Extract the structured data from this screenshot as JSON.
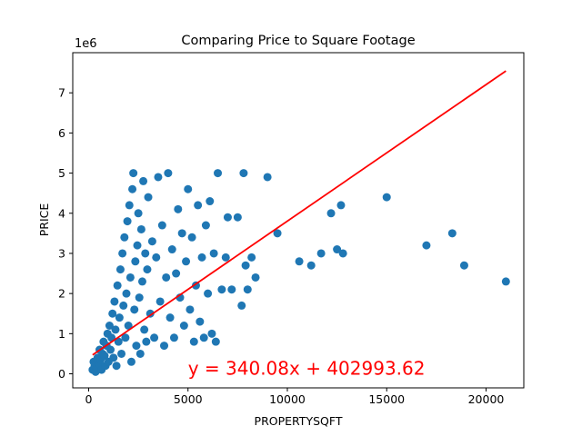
{
  "chart_data": {
    "type": "scatter",
    "title": "Comparing Price to Square Footage",
    "xlabel": "PROPERTYSQFT",
    "ylabel": "PRICE",
    "y_offset_label": "1e6",
    "xlim": [
      -800,
      21900
    ],
    "ylim": [
      -0.35,
      8.0
    ],
    "y_scale_factor": 1000000,
    "x_ticks": [
      0,
      5000,
      10000,
      15000,
      20000
    ],
    "x_tick_labels": [
      "0",
      "5000",
      "10000",
      "15000",
      "20000"
    ],
    "y_ticks": [
      0,
      1,
      2,
      3,
      4,
      5,
      6,
      7
    ],
    "y_tick_labels": [
      "0",
      "1",
      "2",
      "3",
      "4",
      "5",
      "6",
      "7"
    ],
    "grid": false,
    "colors": {
      "points": "#1f77b4",
      "regression": "#ff0000",
      "annotation": "#ff0000"
    },
    "series": [
      {
        "points": [
          [
            200,
            0.1
          ],
          [
            250,
            0.3
          ],
          [
            300,
            0.2
          ],
          [
            350,
            0.05
          ],
          [
            400,
            0.15
          ],
          [
            450,
            0.4
          ],
          [
            500,
            0.25
          ],
          [
            550,
            0.6
          ],
          [
            600,
            0.35
          ],
          [
            650,
            0.1
          ],
          [
            700,
            0.5
          ],
          [
            750,
            0.8
          ],
          [
            800,
            0.45
          ],
          [
            850,
            0.2
          ],
          [
            900,
            0.7
          ],
          [
            950,
            1.0
          ],
          [
            1000,
            0.3
          ],
          [
            1050,
            1.2
          ],
          [
            1100,
            0.6
          ],
          [
            1150,
            0.9
          ],
          [
            1200,
            1.5
          ],
          [
            1250,
            0.4
          ],
          [
            1300,
            1.8
          ],
          [
            1350,
            1.1
          ],
          [
            1400,
            0.2
          ],
          [
            1450,
            2.2
          ],
          [
            1500,
            0.8
          ],
          [
            1550,
            1.4
          ],
          [
            1600,
            2.6
          ],
          [
            1650,
            0.5
          ],
          [
            1700,
            3.0
          ],
          [
            1750,
            1.7
          ],
          [
            1800,
            3.4
          ],
          [
            1850,
            0.9
          ],
          [
            1900,
            2.0
          ],
          [
            1950,
            3.8
          ],
          [
            2000,
            1.2
          ],
          [
            2050,
            4.2
          ],
          [
            2100,
            2.4
          ],
          [
            2150,
            0.3
          ],
          [
            2200,
            4.6
          ],
          [
            2250,
            5.0
          ],
          [
            2300,
            1.6
          ],
          [
            2350,
            2.8
          ],
          [
            2400,
            0.7
          ],
          [
            2450,
            3.2
          ],
          [
            2500,
            4.0
          ],
          [
            2550,
            1.9
          ],
          [
            2600,
            0.5
          ],
          [
            2650,
            3.6
          ],
          [
            2700,
            2.3
          ],
          [
            2750,
            4.8
          ],
          [
            2800,
            1.1
          ],
          [
            2850,
            3.0
          ],
          [
            2900,
            0.8
          ],
          [
            2950,
            2.6
          ],
          [
            3000,
            4.4
          ],
          [
            3100,
            1.5
          ],
          [
            3200,
            3.3
          ],
          [
            3300,
            0.9
          ],
          [
            3400,
            2.9
          ],
          [
            3500,
            4.9
          ],
          [
            3600,
            1.8
          ],
          [
            3700,
            3.7
          ],
          [
            3800,
            0.7
          ],
          [
            3900,
            2.4
          ],
          [
            4000,
            5.0
          ],
          [
            4100,
            1.4
          ],
          [
            4200,
            3.1
          ],
          [
            4300,
            0.9
          ],
          [
            4400,
            2.5
          ],
          [
            4500,
            4.1
          ],
          [
            4600,
            1.9
          ],
          [
            4700,
            3.5
          ],
          [
            4800,
            1.2
          ],
          [
            4900,
            2.8
          ],
          [
            5000,
            4.6
          ],
          [
            5100,
            1.6
          ],
          [
            5200,
            3.4
          ],
          [
            5300,
            0.8
          ],
          [
            5400,
            2.2
          ],
          [
            5500,
            4.2
          ],
          [
            5600,
            1.3
          ],
          [
            5700,
            2.9
          ],
          [
            5800,
            0.9
          ],
          [
            5900,
            3.7
          ],
          [
            6000,
            2.0
          ],
          [
            6100,
            4.3
          ],
          [
            6200,
            1.0
          ],
          [
            6300,
            3.0
          ],
          [
            6400,
            0.8
          ],
          [
            6500,
            5.0
          ],
          [
            6700,
            2.1
          ],
          [
            6900,
            2.9
          ],
          [
            7000,
            3.9
          ],
          [
            7200,
            2.1
          ],
          [
            7500,
            3.9
          ],
          [
            7700,
            1.7
          ],
          [
            7800,
            5.0
          ],
          [
            7900,
            2.7
          ],
          [
            8000,
            2.1
          ],
          [
            8200,
            2.9
          ],
          [
            8400,
            2.4
          ],
          [
            9000,
            4.9
          ],
          [
            9500,
            3.5
          ],
          [
            10600,
            2.8
          ],
          [
            11200,
            2.7
          ],
          [
            11700,
            3.0
          ],
          [
            12200,
            4.0
          ],
          [
            12500,
            3.1
          ],
          [
            12700,
            4.2
          ],
          [
            12800,
            3.0
          ],
          [
            15000,
            4.4
          ],
          [
            17000,
            3.2
          ],
          [
            18300,
            3.5
          ],
          [
            18900,
            2.7
          ],
          [
            21000,
            2.3
          ]
        ]
      }
    ],
    "regression": {
      "slope": 340.08,
      "intercept": 402993.62,
      "x_range": [
        200,
        21000
      ]
    },
    "annotation": {
      "text": "y = 340.08x + 402993.62",
      "x": 5000,
      "y": 0.05
    }
  }
}
